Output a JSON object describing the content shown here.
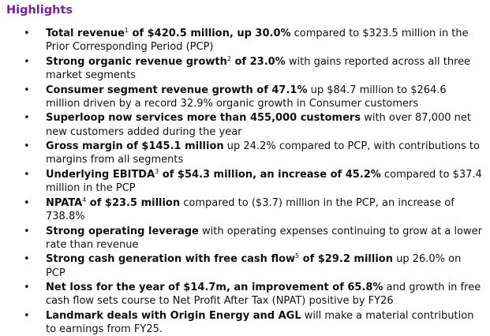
{
  "heading": "Highlights",
  "bullet_glyph": "•",
  "items": [
    {
      "b1": "Total revenue",
      "sup": "1",
      "b2": " of $420.5 million, up 30.0%",
      "t": " compared to $323.5 million in the Prior Corresponding Period (PCP)"
    },
    {
      "b1": "Strong organic revenue growth",
      "sup": "2",
      "b2": " of 23.0%",
      "t": " with gains reported across all three market segments"
    },
    {
      "b1": "Consumer segment revenue growth of 47.1%",
      "sup": "",
      "b2": "",
      "t": " up $84.7 million to $264.6 million driven by a record 32.9% organic growth in Consumer customers"
    },
    {
      "b1": "Superloop now services more than 455,000 customers",
      "sup": "",
      "b2": "",
      "t": " with over 87,000 net new customers added during the year"
    },
    {
      "b1": "Gross margin of $145.1 million",
      "sup": "",
      "b2": "",
      "t": " up 24.2% compared to PCP, with contributions to margins from all segments"
    },
    {
      "b1": "Underlying EBITDA",
      "sup": "3",
      "b2": " of $54.3 million, an increase of 45.2%",
      "t": " compared to $37.4 million in the PCP"
    },
    {
      "b1": "NPATA",
      "sup": "4",
      "b2": " of $23.5 million",
      "t": " compared to ($3.7) million in the PCP, an increase of 738.8%"
    },
    {
      "b1": "Strong operating leverage",
      "sup": "",
      "b2": "",
      "t": " with operating expenses continuing to grow at a lower rate than revenue"
    },
    {
      "b1": "Strong cash generation with free cash flow",
      "sup": "5",
      "b2": " of $29.2 million",
      "t": " up 26.0% on PCP"
    },
    {
      "b1": "Net loss for the year of $14.7m, an improvement of 65.8%",
      "sup": "",
      "b2": "",
      "t": " and growth in free cash flow sets course to Net Profit After Tax (NPAT) positive by FY26"
    },
    {
      "b1": "Landmark deals with Origin Energy and AGL",
      "sup": "",
      "b2": "",
      "t": " will make a material contribution to earnings from FY25."
    }
  ]
}
